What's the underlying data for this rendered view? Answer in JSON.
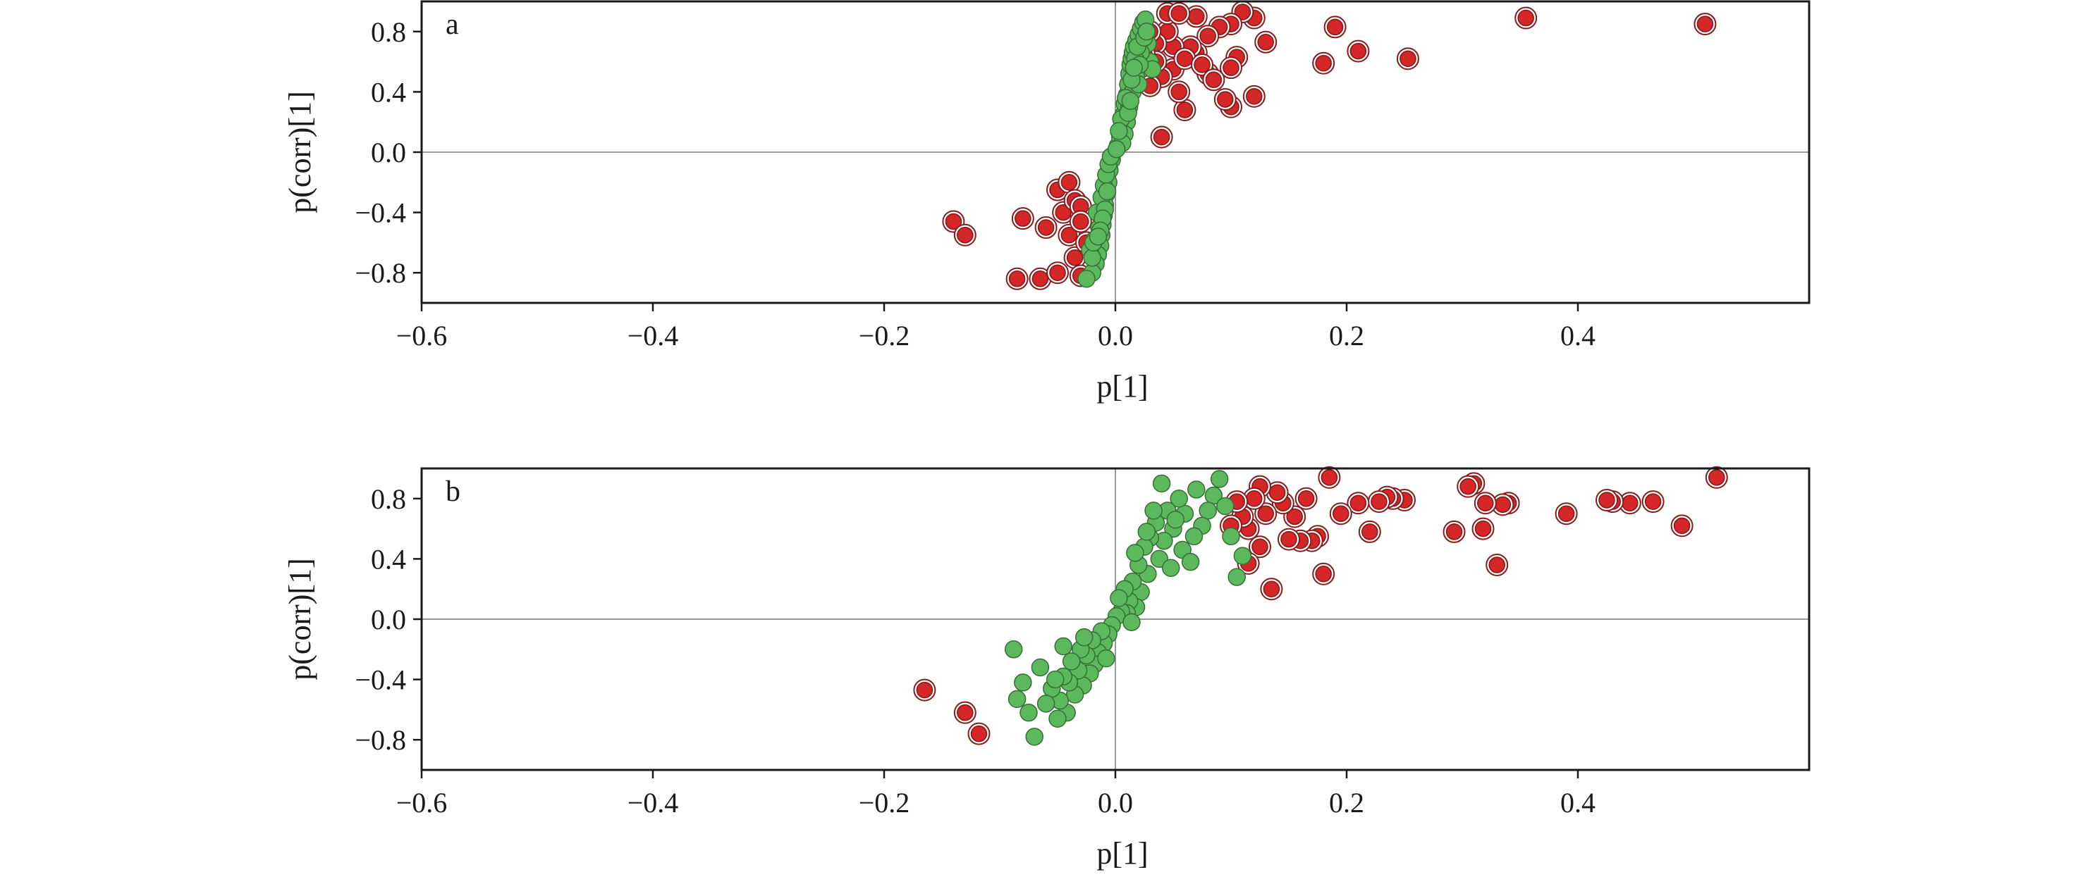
{
  "chart_data": [
    {
      "type": "scatter",
      "panel_label": "a",
      "xlabel": "p[1]",
      "ylabel": "p(corr)[1]",
      "xlim": [
        -0.6,
        0.6
      ],
      "ylim": [
        -1.0,
        1.0
      ],
      "xticks": [
        -0.6,
        -0.4,
        -0.2,
        0.0,
        0.2,
        0.4
      ],
      "xtick_labels": [
        "−0.6",
        "−0.4",
        "−0.2",
        "0.0",
        "0.2",
        "0.4"
      ],
      "yticks": [
        0.8,
        0.4,
        0.0,
        -0.4,
        -0.8
      ],
      "ytick_labels": [
        "0.8",
        "0.4",
        "0.0",
        "−0.4",
        "−0.8"
      ],
      "zero_lines": true,
      "series": [
        {
          "color": "#d62728",
          "points": [
            [
              0.51,
              0.85
            ],
            [
              0.355,
              0.89
            ],
            [
              0.253,
              0.62
            ],
            [
              0.21,
              0.67
            ],
            [
              0.19,
              0.83
            ],
            [
              0.18,
              0.59
            ],
            [
              0.13,
              0.73
            ],
            [
              0.12,
              0.89
            ],
            [
              0.11,
              0.93
            ],
            [
              0.1,
              0.85
            ],
            [
              0.09,
              0.83
            ],
            [
              0.08,
              0.77
            ],
            [
              0.105,
              0.63
            ],
            [
              0.1,
              0.56
            ],
            [
              0.12,
              0.37
            ],
            [
              0.1,
              0.3
            ],
            [
              0.095,
              0.35
            ],
            [
              0.08,
              0.52
            ],
            [
              0.07,
              0.66
            ],
            [
              0.07,
              0.9
            ],
            [
              0.065,
              0.7
            ],
            [
              0.06,
              0.28
            ],
            [
              0.055,
              0.4
            ],
            [
              0.05,
              0.55
            ],
            [
              0.05,
              0.7
            ],
            [
              0.045,
              0.8
            ],
            [
              0.045,
              0.92
            ],
            [
              0.04,
              0.5
            ],
            [
              0.04,
              0.1
            ],
            [
              0.035,
              0.72
            ],
            [
              0.035,
              0.6
            ],
            [
              0.03,
              0.8
            ],
            [
              0.03,
              0.44
            ],
            [
              0.025,
              0.65
            ],
            [
              0.055,
              0.92
            ],
            [
              0.06,
              0.62
            ],
            [
              0.075,
              0.58
            ],
            [
              0.085,
              0.48
            ],
            [
              -0.14,
              -0.46
            ],
            [
              -0.13,
              -0.55
            ],
            [
              -0.085,
              -0.84
            ],
            [
              -0.08,
              -0.44
            ],
            [
              -0.065,
              -0.84
            ],
            [
              -0.06,
              -0.5
            ],
            [
              -0.05,
              -0.25
            ],
            [
              -0.05,
              -0.8
            ],
            [
              -0.045,
              -0.4
            ],
            [
              -0.04,
              -0.2
            ],
            [
              -0.04,
              -0.55
            ],
            [
              -0.035,
              -0.32
            ],
            [
              -0.035,
              -0.7
            ],
            [
              -0.03,
              -0.36
            ],
            [
              -0.03,
              -0.46
            ],
            [
              -0.03,
              -0.82
            ],
            [
              -0.025,
              -0.6
            ]
          ]
        },
        {
          "color": "#5cb85c",
          "points": [
            [
              0.002,
              0.04
            ],
            [
              -0.003,
              -0.05
            ],
            [
              0.004,
              0.1
            ],
            [
              -0.005,
              -0.12
            ],
            [
              0.006,
              0.18
            ],
            [
              -0.006,
              -0.2
            ],
            [
              0.007,
              0.25
            ],
            [
              -0.008,
              -0.28
            ],
            [
              0.008,
              0.32
            ],
            [
              -0.009,
              -0.35
            ],
            [
              0.01,
              0.38
            ],
            [
              -0.01,
              -0.42
            ],
            [
              0.011,
              0.45
            ],
            [
              -0.011,
              -0.48
            ],
            [
              0.012,
              0.52
            ],
            [
              -0.012,
              -0.55
            ],
            [
              0.013,
              0.58
            ],
            [
              -0.013,
              -0.62
            ],
            [
              0.014,
              0.62
            ],
            [
              -0.015,
              -0.68
            ],
            [
              0.015,
              0.66
            ],
            [
              -0.017,
              -0.74
            ],
            [
              0.016,
              0.7
            ],
            [
              -0.02,
              -0.8
            ],
            [
              0.018,
              0.74
            ],
            [
              -0.025,
              -0.84
            ],
            [
              0.02,
              0.78
            ],
            [
              -0.022,
              -0.65
            ],
            [
              0.022,
              0.82
            ],
            [
              -0.018,
              -0.58
            ],
            [
              0.024,
              0.86
            ],
            [
              -0.014,
              -0.5
            ],
            [
              0.026,
              0.88
            ],
            [
              -0.016,
              -0.4
            ],
            [
              0.028,
              0.72
            ],
            [
              -0.012,
              -0.3
            ],
            [
              0.03,
              0.6
            ],
            [
              -0.01,
              -0.22
            ],
            [
              0.032,
              0.55
            ],
            [
              -0.008,
              -0.15
            ],
            [
              0.015,
              0.4
            ],
            [
              -0.006,
              -0.08
            ],
            [
              0.012,
              0.3
            ],
            [
              -0.004,
              -0.03
            ],
            [
              0.01,
              0.2
            ],
            [
              0.008,
              0.12
            ],
            [
              0.006,
              0.06
            ],
            [
              0.018,
              0.5
            ],
            [
              0.02,
              0.45
            ],
            [
              0.022,
              0.66
            ],
            [
              -0.02,
              -0.7
            ],
            [
              -0.019,
              -0.6
            ],
            [
              0.005,
              0.22
            ],
            [
              0.009,
              0.36
            ],
            [
              -0.007,
              -0.26
            ],
            [
              0.017,
              0.62
            ],
            [
              0.019,
              0.7
            ],
            [
              0.021,
              0.58
            ],
            [
              0.014,
              0.48
            ],
            [
              -0.009,
              -0.38
            ],
            [
              -0.011,
              -0.44
            ],
            [
              0.003,
              0.14
            ],
            [
              0.001,
              0.02
            ],
            [
              0.025,
              0.76
            ],
            [
              0.027,
              0.8
            ],
            [
              0.016,
              0.56
            ],
            [
              -0.013,
              -0.52
            ],
            [
              -0.015,
              -0.56
            ],
            [
              0.011,
              0.26
            ],
            [
              0.013,
              0.34
            ]
          ]
        }
      ]
    },
    {
      "type": "scatter",
      "panel_label": "b",
      "xlabel": "p[1]",
      "ylabel": "p(corr)[1]",
      "xlim": [
        -0.6,
        0.6
      ],
      "ylim": [
        -1.0,
        1.0
      ],
      "xticks": [
        -0.6,
        -0.4,
        -0.2,
        0.0,
        0.2,
        0.4
      ],
      "xtick_labels": [
        "−0.6",
        "−0.4",
        "−0.2",
        "0.0",
        "0.2",
        "0.4"
      ],
      "yticks": [
        0.8,
        0.4,
        0.0,
        -0.4,
        -0.8
      ],
      "ytick_labels": [
        "0.8",
        "0.4",
        "0.0",
        "−0.4",
        "−0.8"
      ],
      "zero_lines": true,
      "series": [
        {
          "color": "#d62728",
          "points": [
            [
              0.52,
              0.94
            ],
            [
              0.49,
              0.62
            ],
            [
              0.465,
              0.78
            ],
            [
              0.445,
              0.77
            ],
            [
              0.43,
              0.78
            ],
            [
              0.425,
              0.79
            ],
            [
              0.39,
              0.7
            ],
            [
              0.34,
              0.77
            ],
            [
              0.335,
              0.76
            ],
            [
              0.33,
              0.36
            ],
            [
              0.32,
              0.77
            ],
            [
              0.318,
              0.6
            ],
            [
              0.31,
              0.9
            ],
            [
              0.305,
              0.88
            ],
            [
              0.293,
              0.58
            ],
            [
              0.25,
              0.79
            ],
            [
              0.24,
              0.8
            ],
            [
              0.235,
              0.81
            ],
            [
              0.228,
              0.78
            ],
            [
              0.22,
              0.58
            ],
            [
              0.21,
              0.77
            ],
            [
              0.195,
              0.7
            ],
            [
              0.185,
              0.94
            ],
            [
              0.18,
              0.3
            ],
            [
              0.175,
              0.55
            ],
            [
              0.17,
              0.52
            ],
            [
              0.165,
              0.8
            ],
            [
              0.16,
              0.52
            ],
            [
              0.155,
              0.68
            ],
            [
              0.15,
              0.53
            ],
            [
              0.145,
              0.77
            ],
            [
              0.14,
              0.84
            ],
            [
              0.135,
              0.2
            ],
            [
              0.13,
              0.7
            ],
            [
              0.125,
              0.88
            ],
            [
              0.125,
              0.48
            ],
            [
              0.12,
              0.8
            ],
            [
              0.115,
              0.37
            ],
            [
              0.115,
              0.6
            ],
            [
              0.11,
              0.68
            ],
            [
              0.105,
              0.78
            ],
            [
              0.1,
              0.62
            ],
            [
              -0.165,
              -0.47
            ],
            [
              -0.13,
              -0.62
            ],
            [
              -0.118,
              -0.76
            ]
          ]
        },
        {
          "color": "#5cb85c",
          "points": [
            [
              0.09,
              0.93
            ],
            [
              0.085,
              0.82
            ],
            [
              0.08,
              0.72
            ],
            [
              0.075,
              0.62
            ],
            [
              0.07,
              0.86
            ],
            [
              0.068,
              0.55
            ],
            [
              0.06,
              0.7
            ],
            [
              0.058,
              0.46
            ],
            [
              0.055,
              0.8
            ],
            [
              0.05,
              0.6
            ],
            [
              0.045,
              0.72
            ],
            [
              0.042,
              0.52
            ],
            [
              0.04,
              0.9
            ],
            [
              0.038,
              0.4
            ],
            [
              0.035,
              0.64
            ],
            [
              0.03,
              0.54
            ],
            [
              0.028,
              0.3
            ],
            [
              0.025,
              0.48
            ],
            [
              0.022,
              0.18
            ],
            [
              0.02,
              0.36
            ],
            [
              0.018,
              0.08
            ],
            [
              0.015,
              0.25
            ],
            [
              0.012,
              0.12
            ],
            [
              0.01,
              0.04
            ],
            [
              0.008,
              0.2
            ],
            [
              0.005,
              0.05
            ],
            [
              0.003,
              0.14
            ],
            [
              0.001,
              0.02
            ],
            [
              -0.003,
              -0.04
            ],
            [
              -0.006,
              -0.1
            ],
            [
              -0.01,
              -0.16
            ],
            [
              -0.012,
              -0.08
            ],
            [
              -0.015,
              -0.22
            ],
            [
              -0.018,
              -0.3
            ],
            [
              -0.02,
              -0.14
            ],
            [
              -0.022,
              -0.36
            ],
            [
              -0.025,
              -0.24
            ],
            [
              -0.028,
              -0.44
            ],
            [
              -0.03,
              -0.2
            ],
            [
              -0.032,
              -0.34
            ],
            [
              -0.035,
              -0.5
            ],
            [
              -0.038,
              -0.28
            ],
            [
              -0.04,
              -0.42
            ],
            [
              -0.042,
              -0.62
            ],
            [
              -0.045,
              -0.38
            ],
            [
              -0.048,
              -0.54
            ],
            [
              -0.05,
              -0.66
            ],
            [
              -0.055,
              -0.46
            ],
            [
              -0.06,
              -0.56
            ],
            [
              -0.065,
              -0.32
            ],
            [
              -0.07,
              -0.78
            ],
            [
              -0.075,
              -0.62
            ],
            [
              -0.08,
              -0.42
            ],
            [
              -0.085,
              -0.53
            ],
            [
              -0.088,
              -0.2
            ],
            [
              0.1,
              0.55
            ],
            [
              0.095,
              0.75
            ],
            [
              0.11,
              0.42
            ],
            [
              0.105,
              0.28
            ],
            [
              0.065,
              0.38
            ],
            [
              0.052,
              0.66
            ],
            [
              0.048,
              0.34
            ],
            [
              0.033,
              0.72
            ],
            [
              0.027,
              0.58
            ],
            [
              0.017,
              0.44
            ],
            [
              0.014,
              -0.02
            ],
            [
              -0.008,
              -0.26
            ],
            [
              -0.027,
              -0.12
            ],
            [
              -0.045,
              -0.18
            ],
            [
              -0.052,
              -0.4
            ]
          ]
        }
      ]
    }
  ]
}
